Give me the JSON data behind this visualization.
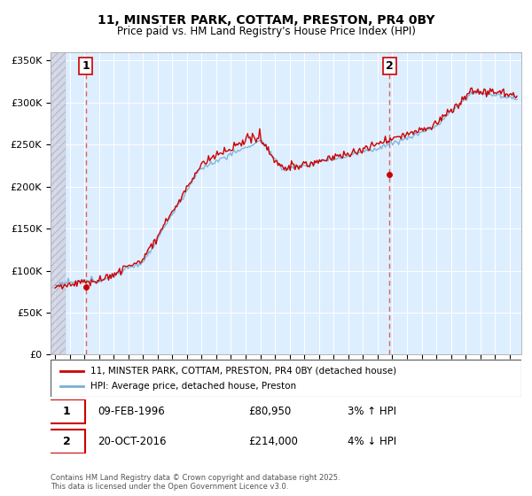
{
  "title": "11, MINSTER PARK, COTTAM, PRESTON, PR4 0BY",
  "subtitle": "Price paid vs. HM Land Registry's House Price Index (HPI)",
  "ylabel_ticks": [
    "£0",
    "£50K",
    "£100K",
    "£150K",
    "£200K",
    "£250K",
    "£300K",
    "£350K"
  ],
  "ytick_vals": [
    0,
    50000,
    100000,
    150000,
    200000,
    250000,
    300000,
    350000
  ],
  "ylim": [
    0,
    360000
  ],
  "xlim_start": 1993.7,
  "xlim_end": 2025.8,
  "marker1_x": 1996.1,
  "marker1_y": 80950,
  "marker2_x": 2016.8,
  "marker2_y": 214000,
  "legend_line1": "11, MINSTER PARK, COTTAM, PRESTON, PR4 0BY (detached house)",
  "legend_line2": "HPI: Average price, detached house, Preston",
  "annotation1_date": "09-FEB-1996",
  "annotation1_price": "£80,950",
  "annotation1_hpi": "3% ↑ HPI",
  "annotation2_date": "20-OCT-2016",
  "annotation2_price": "£214,000",
  "annotation2_hpi": "4% ↓ HPI",
  "footer": "Contains HM Land Registry data © Crown copyright and database right 2025.\nThis data is licensed under the Open Government Licence v3.0.",
  "line_color_red": "#cc0000",
  "line_color_blue": "#7ab0d4",
  "bg_plot": "#ddeeff",
  "bg_hatch_color": "#c8c8d8",
  "marker_color": "#cc0000",
  "marker_box_color": "#cc0000",
  "dashed_line_color": "#e06060"
}
